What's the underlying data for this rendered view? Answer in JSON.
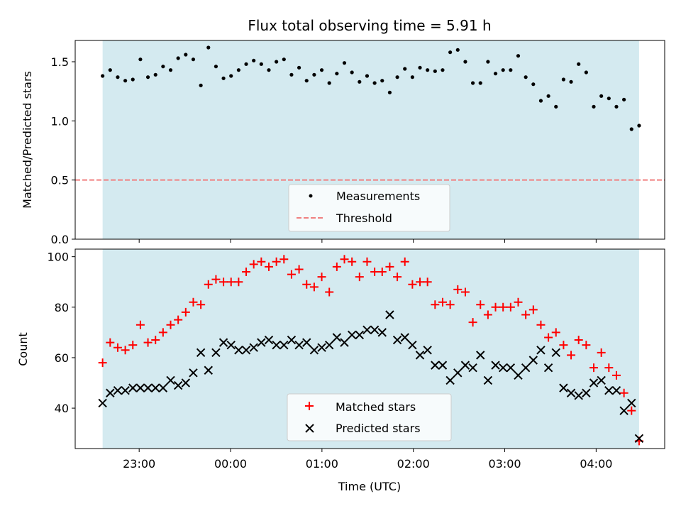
{
  "chart_data": [
    {
      "type": "scatter",
      "title": "Flux total observing time = 5.91 h",
      "xlabel": "",
      "ylabel": "Matched/Predicted stars",
      "ylim": [
        0,
        1.68
      ],
      "yticks": [
        0.0,
        0.5,
        1.0,
        1.5
      ],
      "ytick_labels": [
        "0.0",
        "0.5",
        "1.0",
        "1.5"
      ],
      "xlim_hours": [
        22.3,
        4.75
      ],
      "shaded_span_hours": [
        22.6,
        4.47
      ],
      "shade_color": "#d4eaf0",
      "legend": {
        "location": "lower center",
        "entries": [
          "Measurements",
          "Threshold"
        ]
      },
      "threshold": {
        "value": 0.5,
        "label": "Threshold",
        "color": "#f08080"
      },
      "series": [
        {
          "name": "Measurements",
          "color": "#000000",
          "marker": "dot",
          "x_start_hours": 22.6,
          "x_end_hours": 4.47,
          "values": [
            1.38,
            1.43,
            1.37,
            1.34,
            1.35,
            1.52,
            1.37,
            1.39,
            1.46,
            1.43,
            1.53,
            1.56,
            1.52,
            1.3,
            1.62,
            1.46,
            1.36,
            1.38,
            1.43,
            1.48,
            1.51,
            1.48,
            1.43,
            1.5,
            1.52,
            1.39,
            1.45,
            1.34,
            1.39,
            1.43,
            1.32,
            1.4,
            1.49,
            1.41,
            1.33,
            1.38,
            1.32,
            1.34,
            1.24,
            1.37,
            1.44,
            1.37,
            1.45,
            1.43,
            1.42,
            1.43,
            1.58,
            1.6,
            1.5,
            1.32,
            1.32,
            1.5,
            1.4,
            1.43,
            1.43,
            1.55,
            1.37,
            1.31,
            1.17,
            1.21,
            1.12,
            1.35,
            1.33,
            1.48,
            1.41,
            1.12,
            1.21,
            1.19,
            1.12,
            1.18,
            0.93,
            0.96
          ]
        }
      ]
    },
    {
      "type": "scatter",
      "title": "",
      "xlabel": "Time (UTC)",
      "ylabel": "Count",
      "ylim": [
        24,
        103
      ],
      "yticks": [
        40,
        60,
        80,
        100
      ],
      "ytick_labels": [
        "40",
        "60",
        "80",
        "100"
      ],
      "xticks_hours": [
        23,
        0,
        1,
        2,
        3,
        4
      ],
      "xtick_labels": [
        "23:00",
        "00:00",
        "01:00",
        "02:00",
        "03:00",
        "04:00"
      ],
      "legend": {
        "location": "lower center",
        "entries": [
          "Matched stars",
          "Predicted stars"
        ]
      },
      "series": [
        {
          "name": "Matched stars",
          "color": "#ff0000",
          "marker": "plus",
          "x_start_hours": 22.6,
          "x_end_hours": 4.47,
          "values": [
            58,
            66,
            64,
            63,
            65,
            73,
            66,
            67,
            70,
            73,
            75,
            78,
            82,
            81,
            89,
            91,
            90,
            90,
            90,
            94,
            97,
            98,
            96,
            98,
            99,
            93,
            95,
            89,
            88,
            92,
            86,
            96,
            99,
            98,
            92,
            98,
            94,
            94,
            96,
            92,
            98,
            89,
            90,
            90,
            81,
            82,
            81,
            87,
            86,
            74,
            81,
            77,
            80,
            80,
            80,
            82,
            77,
            79,
            73,
            68,
            70,
            65,
            61,
            67,
            65,
            56,
            62,
            56,
            53,
            46,
            39,
            27
          ]
        },
        {
          "name": "Predicted stars",
          "color": "#000000",
          "marker": "x",
          "x_start_hours": 22.6,
          "x_end_hours": 4.47,
          "values": [
            42,
            46,
            47,
            47,
            48,
            48,
            48,
            48,
            48,
            51,
            49,
            50,
            54,
            62,
            55,
            62,
            66,
            65,
            63,
            63,
            64,
            66,
            67,
            65,
            65,
            67,
            65,
            66,
            63,
            64,
            65,
            68,
            66,
            69,
            69,
            71,
            71,
            70,
            77,
            67,
            68,
            65,
            61,
            63,
            57,
            57,
            51,
            54,
            57,
            56,
            61,
            51,
            57,
            56,
            56,
            53,
            56,
            59,
            63,
            56,
            62,
            48,
            46,
            45,
            46,
            50,
            51,
            47,
            47,
            39,
            42,
            28
          ]
        }
      ]
    }
  ]
}
